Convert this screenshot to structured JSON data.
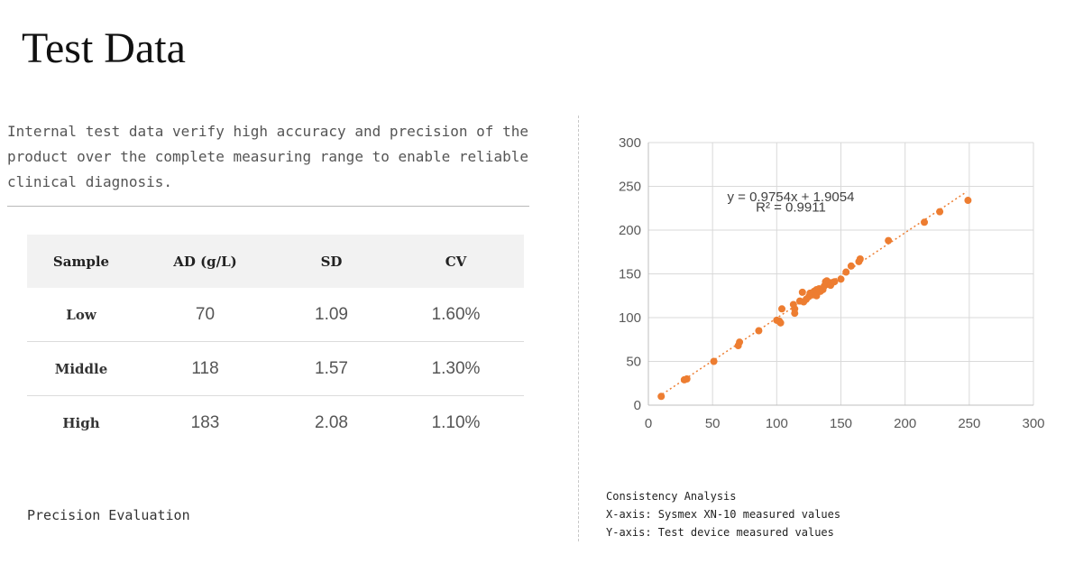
{
  "page": {
    "title": "Test Data",
    "intro": "Internal test data verify high accuracy and precision of the product over the complete measuring range to enable reliable clinical diagnosis."
  },
  "precision_table": {
    "headers": [
      "Sample",
      "AD (g/L)",
      "SD",
      "CV"
    ],
    "rows": [
      {
        "sample": "Low",
        "ad": "70",
        "sd": "1.09",
        "cv": "1.60%"
      },
      {
        "sample": "Middle",
        "ad": "118",
        "sd": "1.57",
        "cv": "1.30%"
      },
      {
        "sample": "High",
        "ad": "183",
        "sd": "2.08",
        "cv": "1.10%"
      }
    ],
    "caption": "Precision Evaluation"
  },
  "captions": {
    "consistency_title": "Consistency Analysis",
    "x_axis_note": "X-axis: Sysmex XN-10 measured values",
    "y_axis_note": "Y-axis: Test device measured values"
  },
  "chart_data": {
    "type": "scatter",
    "title": "",
    "xlabel": "",
    "ylabel": "",
    "xlim": [
      0,
      300
    ],
    "ylim": [
      0,
      300
    ],
    "xticks": [
      0,
      50,
      100,
      150,
      200,
      250,
      300
    ],
    "yticks": [
      0,
      50,
      100,
      150,
      200,
      250,
      300
    ],
    "grid": true,
    "point_color": "#ED7D31",
    "trendline": {
      "slope": 0.9754,
      "intercept": 1.9054,
      "style": "dotted",
      "color": "#ED7D31",
      "equation": "y = 0.9754x + 1.9054",
      "r_squared": "R² = 0.9911"
    },
    "points": [
      [
        10,
        10
      ],
      [
        28,
        29
      ],
      [
        30,
        30
      ],
      [
        70,
        68
      ],
      [
        71,
        72
      ],
      [
        51,
        50
      ],
      [
        86,
        85
      ],
      [
        100,
        97
      ],
      [
        102,
        96
      ],
      [
        103,
        94
      ],
      [
        104,
        110
      ],
      [
        113,
        115
      ],
      [
        114,
        110
      ],
      [
        114,
        105
      ],
      [
        118,
        119
      ],
      [
        120,
        129
      ],
      [
        121,
        118
      ],
      [
        123,
        121
      ],
      [
        125,
        124
      ],
      [
        126,
        128
      ],
      [
        128,
        126
      ],
      [
        129,
        130
      ],
      [
        131,
        125
      ],
      [
        131,
        132
      ],
      [
        133,
        133
      ],
      [
        134,
        130
      ],
      [
        136,
        132
      ],
      [
        137,
        136
      ],
      [
        138,
        141
      ],
      [
        139,
        142
      ],
      [
        140,
        138
      ],
      [
        141,
        140
      ],
      [
        142,
        137
      ],
      [
        143,
        140
      ],
      [
        145,
        141
      ],
      [
        150,
        144
      ],
      [
        154,
        152
      ],
      [
        158,
        159
      ],
      [
        164,
        164
      ],
      [
        165,
        167
      ],
      [
        187,
        188
      ],
      [
        215,
        209
      ],
      [
        227,
        221
      ],
      [
        249,
        234
      ]
    ]
  }
}
